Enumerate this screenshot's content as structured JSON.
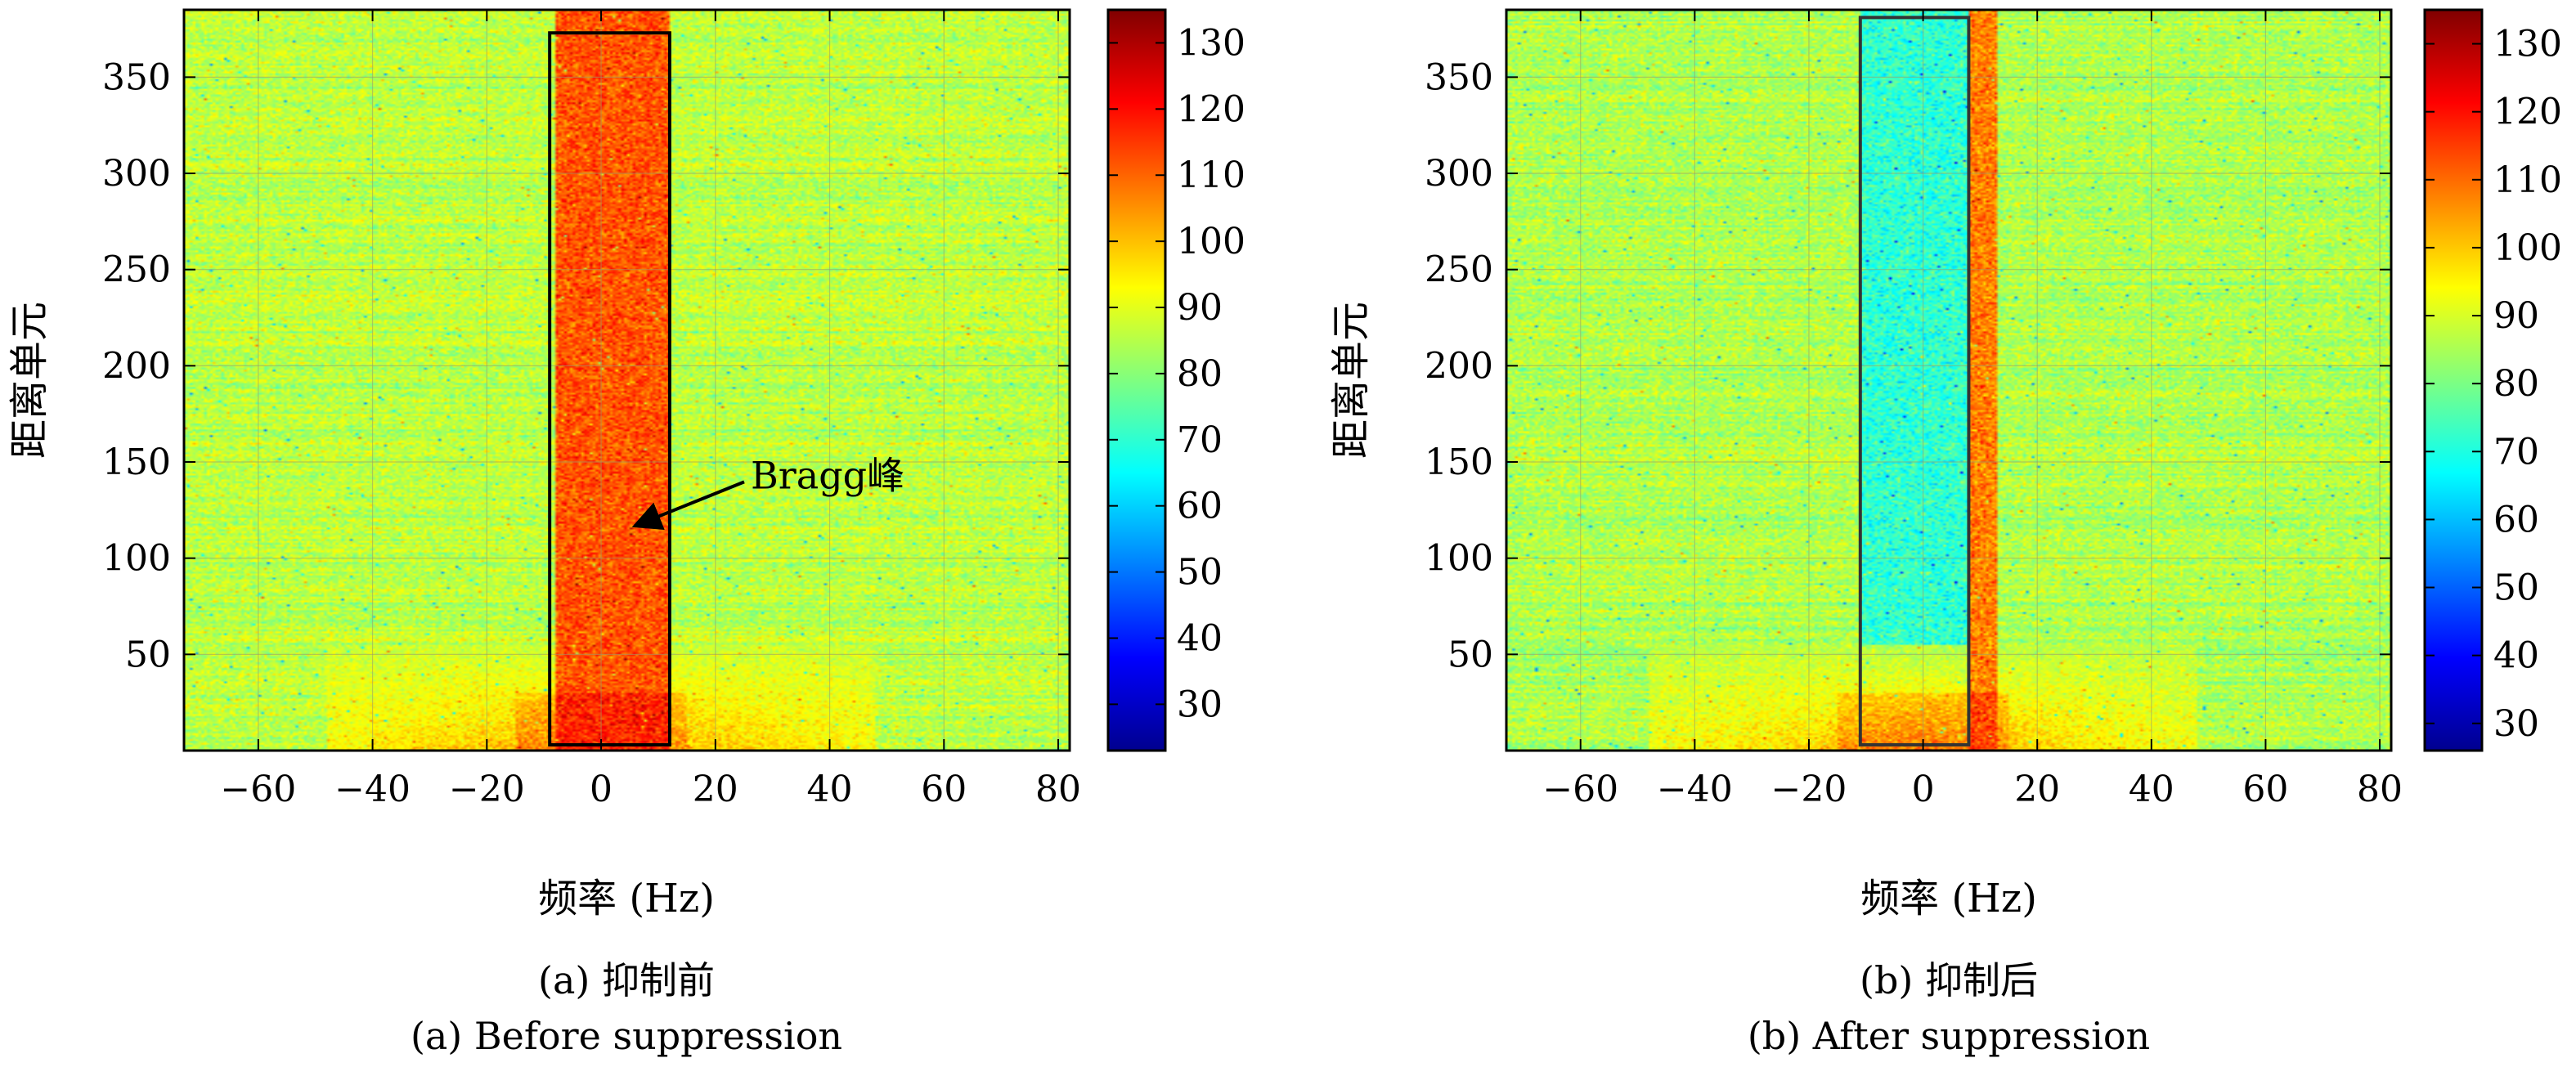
{
  "chart_data": [
    {
      "id": "a",
      "type": "heatmap",
      "xlabel": "频率 (Hz)",
      "ylabel": "距离单元",
      "xlim": [
        -73,
        82
      ],
      "ylim": [
        0,
        385
      ],
      "xticks": [
        -60,
        -40,
        -20,
        0,
        20,
        40,
        60,
        80
      ],
      "xtick_labels": [
        "−60",
        "−40",
        "−20",
        "0",
        "20",
        "40",
        "60",
        "80"
      ],
      "yticks": [
        50,
        100,
        150,
        200,
        250,
        300,
        350
      ],
      "ytick_labels": [
        "50",
        "100",
        "150",
        "200",
        "250",
        "300",
        "350"
      ],
      "grid": true,
      "colorbar": {
        "range": [
          23,
          135
        ],
        "ticks": [
          30,
          40,
          50,
          60,
          70,
          80,
          90,
          100,
          110,
          120,
          130
        ],
        "tick_labels": [
          "30",
          "40",
          "50",
          "60",
          "70",
          "80",
          "90",
          "100",
          "110",
          "120",
          "130"
        ],
        "colormap": "jet"
      },
      "background_level": 86,
      "features": [
        {
          "name": "Bragg peak band",
          "x_range": [
            -8,
            12
          ],
          "level": 112
        },
        {
          "name": "near-range clutter",
          "x_range": [
            -48,
            48
          ],
          "y_range": [
            0,
            55
          ],
          "level": 104
        }
      ],
      "highlight_box": {
        "x": [
          -9,
          12
        ],
        "y": [
          3,
          373
        ]
      },
      "annotation": {
        "text": "Bragg峰",
        "arrow_to": [
          5,
          115
        ]
      },
      "caption": [
        "(a) 抑制前",
        "(a) Before suppression"
      ]
    },
    {
      "id": "b",
      "type": "heatmap",
      "xlabel": "频率 (Hz)",
      "ylabel": "距离单元",
      "xlim": [
        -73,
        82
      ],
      "ylim": [
        0,
        385
      ],
      "xticks": [
        -60,
        -40,
        -20,
        0,
        20,
        40,
        60,
        80
      ],
      "xtick_labels": [
        "−60",
        "−40",
        "−20",
        "0",
        "20",
        "40",
        "60",
        "80"
      ],
      "yticks": [
        50,
        100,
        150,
        200,
        250,
        300,
        350
      ],
      "ytick_labels": [
        "50",
        "100",
        "150",
        "200",
        "250",
        "300",
        "350"
      ],
      "grid": true,
      "colorbar": {
        "range": [
          26,
          135
        ],
        "ticks": [
          30,
          40,
          50,
          60,
          70,
          80,
          90,
          100,
          110,
          120,
          130
        ],
        "tick_labels": [
          "30",
          "40",
          "50",
          "60",
          "70",
          "80",
          "90",
          "100",
          "110",
          "120",
          "130"
        ],
        "colormap": "jet"
      },
      "background_level": 86,
      "features": [
        {
          "name": "suppressed band",
          "x_range": [
            -11,
            8
          ],
          "level": 72
        },
        {
          "name": "residual peak",
          "x_range": [
            8,
            13
          ],
          "level": 108
        },
        {
          "name": "near-range clutter",
          "x_range": [
            -48,
            48
          ],
          "y_range": [
            0,
            55
          ],
          "level": 104
        }
      ],
      "highlight_box": {
        "x": [
          -11,
          8
        ],
        "y": [
          3,
          381
        ]
      },
      "caption": [
        "(b) 抑制后",
        "(b) After suppression"
      ]
    }
  ]
}
